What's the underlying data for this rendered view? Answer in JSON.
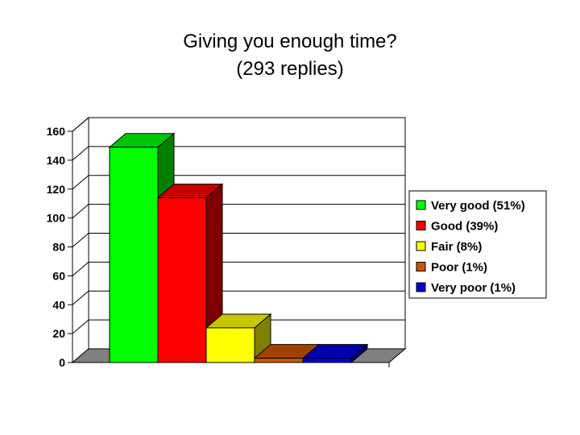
{
  "chart_data": {
    "type": "bar",
    "title": "Giving you enough time?",
    "subtitle": "(293 replies)",
    "categories": [
      "Very good (51%)",
      "Good (39%)",
      "Fair (8%)",
      "Poor (1%)",
      "Very poor (1%)"
    ],
    "values": [
      149,
      114,
      24,
      3,
      3
    ],
    "colors": [
      "#00ff00",
      "#ff0000",
      "#ffff00",
      "#cc5500",
      "#0000dd"
    ],
    "ylim": [
      0,
      160
    ],
    "yticks": [
      "0",
      "20",
      "40",
      "60",
      "80",
      "100",
      "120",
      "140",
      "160"
    ],
    "grid": true,
    "style": "3d",
    "legend": "right",
    "xlabel": "",
    "ylabel": ""
  }
}
